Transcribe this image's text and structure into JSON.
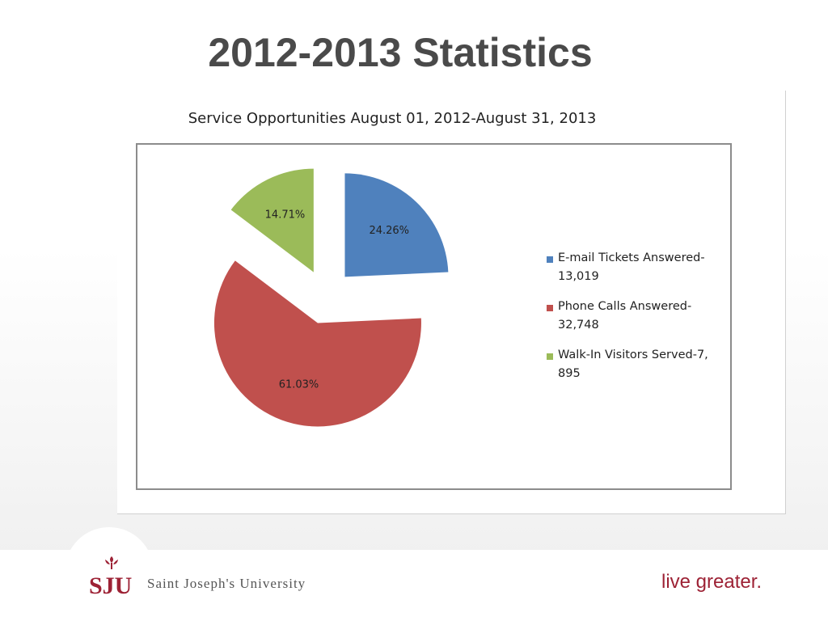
{
  "slide": {
    "title": "2012-2013 Statistics"
  },
  "chart_data": {
    "type": "pie",
    "title": "Service Opportunities August 01, 2012-August 31, 2013",
    "slices": [
      {
        "label": "E-mail Tickets Answered-\n13,019",
        "value": 24.26,
        "label_text": "24.26%",
        "color": "#4f81bd"
      },
      {
        "label": "Phone Calls Answered-\n32,748",
        "value": 61.03,
        "label_text": "61.03%",
        "color": "#c0504d"
      },
      {
        "label": "Walk-In Visitors Served-7,\n895",
        "value": 14.71,
        "label_text": "14.71%",
        "color": "#9bbb59"
      }
    ],
    "exploded": true,
    "legend_position": "right"
  },
  "footer": {
    "logo_text": "SJU",
    "university_name": "Saint Joseph's University",
    "tagline": "live greater.",
    "accent_color": "#9d2235"
  }
}
